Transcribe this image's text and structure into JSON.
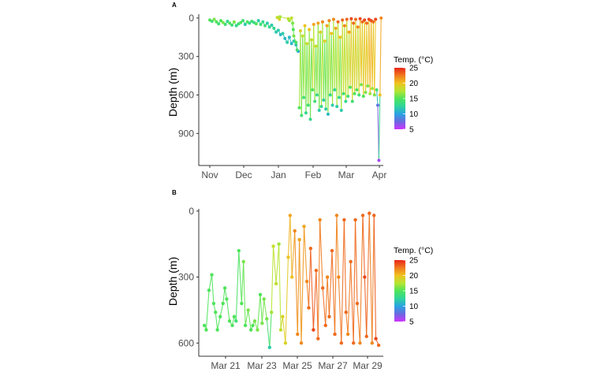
{
  "colors": {
    "scale": [
      "#cc33ff",
      "#6a6adf",
      "#2aa3e3",
      "#2fd59a",
      "#4fe45a",
      "#b6e532",
      "#f0c21f",
      "#f07a1c",
      "#e8251a"
    ],
    "axis": "#333333"
  },
  "chart_data": [
    {
      "panel": "A",
      "type": "line",
      "xlabel": "",
      "ylabel": "Depth (m)",
      "x_ticks": [
        "Nov",
        "Dec",
        "Jan",
        "Feb",
        "Mar",
        "Apr"
      ],
      "y_ticks": [
        0,
        300,
        600,
        900
      ],
      "ylim": [
        1150,
        -30
      ],
      "y_reversed": true,
      "x_range_days": [
        -10,
        157
      ],
      "legend": {
        "title": "Temp. (°C)",
        "ticks": [
          5,
          10,
          15,
          20,
          25
        ],
        "range": [
          5,
          25
        ],
        "placement": "right"
      },
      "series": [
        {
          "x": [
            0,
            2,
            4,
            6,
            8,
            10,
            12,
            14,
            16,
            18,
            20,
            22,
            24,
            26,
            28,
            30,
            32,
            34,
            36,
            38,
            40,
            42,
            44,
            46,
            48,
            50,
            52,
            54,
            56,
            58,
            60,
            62,
            64,
            66,
            68,
            70,
            72,
            74,
            76,
            78,
            80
          ],
          "y": [
            15,
            25,
            10,
            30,
            45,
            20,
            35,
            50,
            25,
            40,
            55,
            30,
            60,
            45,
            35,
            20,
            50,
            30,
            40,
            25,
            35,
            45,
            20,
            50,
            30,
            60,
            40,
            70,
            55,
            80,
            110,
            95,
            130,
            120,
            160,
            190,
            150,
            200,
            180,
            210,
            260
          ],
          "temp": [
            15,
            14,
            16,
            15,
            14,
            15,
            16,
            14,
            13,
            15,
            14,
            16,
            13,
            14,
            15,
            14,
            12,
            15,
            13,
            14,
            13,
            15,
            12,
            14,
            13,
            14,
            12,
            13,
            12,
            13,
            12,
            12,
            11,
            12,
            11,
            12,
            11,
            11,
            12,
            11,
            10
          ]
        },
        {
          "x": [
            61,
            63,
            63.5,
            71,
            72,
            74,
            75,
            75.5,
            76,
            78,
            79
          ],
          "y": [
            -5,
            10,
            -10,
            5,
            20,
            0,
            40,
            90,
            140,
            190,
            250
          ],
          "temp": [
            18,
            19,
            17,
            18,
            17,
            18,
            16,
            15,
            16,
            15,
            14
          ]
        },
        {
          "x": [
            81,
            82,
            83,
            84,
            85,
            86,
            87,
            88,
            89,
            90,
            91,
            92,
            93,
            94,
            95,
            96,
            97,
            98,
            99,
            100,
            101,
            102,
            103,
            104,
            105,
            106,
            107,
            108,
            109,
            110,
            111,
            112,
            113,
            114,
            115,
            116,
            117,
            118,
            119,
            120,
            121,
            122,
            123,
            124,
            125,
            126,
            127,
            128,
            129,
            130,
            131,
            132,
            133,
            134,
            135,
            136,
            137,
            138,
            139,
            140,
            141,
            142,
            143,
            144,
            145,
            146,
            147,
            148,
            149,
            150
          ],
          "y": [
            700,
            100,
            760,
            140,
            620,
            60,
            740,
            200,
            680,
            90,
            790,
            170,
            560,
            50,
            650,
            220,
            600,
            40,
            720,
            110,
            690,
            30,
            640,
            180,
            710,
            60,
            750,
            20,
            600,
            120,
            680,
            10,
            560,
            80,
            690,
            30,
            620,
            150,
            720,
            15,
            590,
            60,
            650,
            10,
            610,
            110,
            540,
            5,
            650,
            40,
            590,
            10,
            560,
            70,
            600,
            5,
            520,
            30,
            610,
            15,
            580,
            40,
            530,
            10,
            590,
            20,
            550,
            30,
            600,
            10
          ],
          "temp": [
            15,
            19,
            14,
            18,
            14,
            20,
            13,
            18,
            14,
            20,
            13,
            18,
            15,
            21,
            14,
            18,
            13,
            21,
            12,
            19,
            13,
            22,
            12,
            19,
            12,
            21,
            11,
            22,
            13,
            20,
            12,
            22,
            13,
            21,
            12,
            23,
            13,
            20,
            12,
            23,
            14,
            22,
            13,
            23,
            14,
            21,
            15,
            24,
            14,
            23,
            15,
            23,
            15,
            22,
            14,
            24,
            16,
            23,
            15,
            24,
            16,
            23,
            16,
            24,
            17,
            24,
            17,
            23,
            16,
            24
          ]
        },
        {
          "x": [
            151,
            152,
            153,
            154,
            155
          ],
          "y": [
            560,
            680,
            1110,
            600,
            0
          ],
          "temp": [
            14,
            8,
            6,
            20,
            22
          ]
        }
      ]
    },
    {
      "panel": "B",
      "type": "line",
      "xlabel": "",
      "ylabel": "Depth (m)",
      "x_ticks": [
        "Mar 21",
        "Mar 23",
        "Mar 25",
        "Mar 27",
        "Mar 29"
      ],
      "y_ticks": [
        0,
        300,
        600
      ],
      "ylim": [
        660,
        -10
      ],
      "y_reversed": true,
      "x_range_days": [
        19.6,
        29.5
      ],
      "legend": {
        "title": "Temp. (°C)",
        "ticks": [
          5,
          10,
          15,
          20,
          25
        ],
        "range": [
          5,
          25
        ],
        "placement": "right"
      },
      "series": [
        {
          "x": [
            19.9,
            20.0,
            20.15,
            20.3,
            20.4,
            20.5,
            20.6,
            20.75,
            20.9,
            21.0,
            21.1,
            21.25,
            21.4,
            21.5,
            21.6,
            21.75,
            21.9,
            22.0,
            22.1,
            22.25,
            22.4,
            22.5,
            22.6,
            22.75,
            22.9,
            23.0,
            23.1,
            23.25,
            23.4,
            23.5,
            23.6,
            23.75,
            23.9,
            24.0,
            24.1,
            24.25,
            24.4,
            24.5,
            24.6,
            24.75,
            24.9,
            25.0,
            25.1,
            25.25,
            25.4,
            25.5,
            25.6,
            25.75,
            25.9,
            26.0,
            26.1,
            26.25,
            26.4,
            26.5,
            26.6,
            26.75,
            26.9,
            27.0,
            27.1,
            27.25,
            27.4,
            27.5,
            27.6,
            27.75,
            27.9,
            28.0,
            28.1,
            28.25,
            28.4,
            28.5,
            28.6,
            28.75,
            28.9,
            29.0,
            29.1,
            29.25
          ],
          "y": [
            520,
            540,
            360,
            290,
            420,
            460,
            540,
            480,
            420,
            350,
            400,
            500,
            520,
            480,
            500,
            180,
            420,
            230,
            520,
            450,
            540,
            520,
            500,
            540,
            380,
            510,
            400,
            490,
            620,
            460,
            160,
            330,
            150,
            540,
            480,
            600,
            210,
            20,
            300,
            90,
            560,
            130,
            600,
            70,
            320,
            440,
            170,
            540,
            270,
            580,
            40,
            350,
            520,
            300,
            480,
            180,
            560,
            20,
            300,
            600,
            40,
            460,
            560,
            230,
            600,
            40,
            420,
            600,
            20,
            300,
            570,
            10,
            600,
            20,
            580,
            610
          ],
          "temp": [
            15,
            15,
            15,
            15,
            15,
            15,
            15,
            15,
            15,
            15,
            15,
            15,
            15,
            15,
            14,
            15,
            15,
            16,
            15,
            16,
            15,
            15,
            16,
            16,
            15,
            16,
            16,
            16,
            12,
            17,
            18,
            18,
            17,
            18,
            19,
            19,
            20,
            21,
            20,
            22,
            22,
            21,
            22,
            21,
            22,
            23,
            23,
            24,
            23,
            23,
            22,
            23,
            23,
            22,
            23,
            23,
            23,
            22,
            22,
            23,
            23,
            23,
            22,
            23,
            23,
            23,
            23,
            22,
            23,
            24,
            23,
            23,
            22,
            23,
            24,
            23
          ]
        }
      ]
    }
  ]
}
